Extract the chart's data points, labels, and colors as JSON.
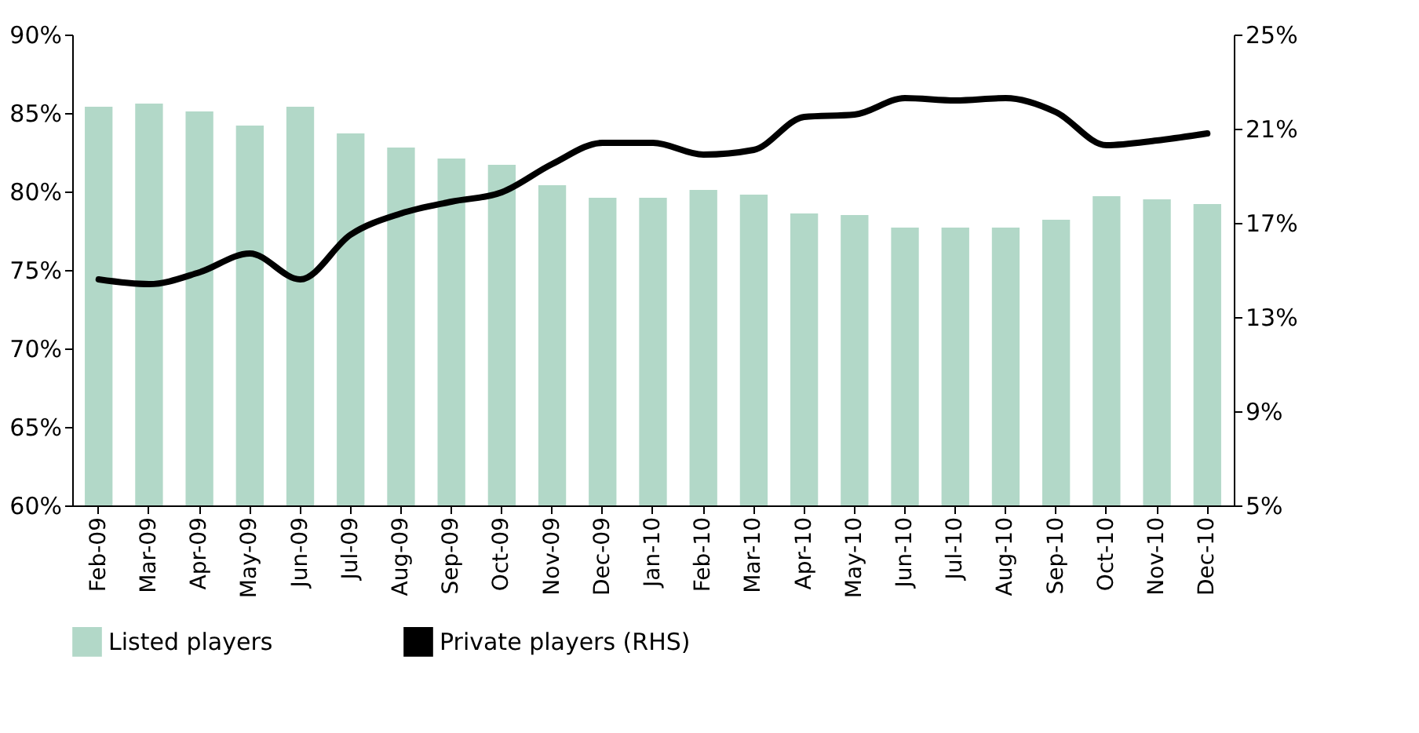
{
  "chart_data": {
    "type": "bar",
    "categories": [
      "Feb-09",
      "Mar-09",
      "Apr-09",
      "May-09",
      "Jun-09",
      "Jul-09",
      "Aug-09",
      "Sep-09",
      "Oct-09",
      "Nov-09",
      "Dec-09",
      "Jan-10",
      "Feb-10",
      "Mar-10",
      "Apr-10",
      "May-10",
      "Jun-10",
      "Jul-10",
      "Aug-10",
      "Sep-10",
      "Oct-10",
      "Nov-10",
      "Dec-10"
    ],
    "series": [
      {
        "name": "Listed players",
        "color": "#b2d8c8",
        "values": [
          85.4,
          85.6,
          85.1,
          84.2,
          85.4,
          83.7,
          82.8,
          82.1,
          81.7,
          80.4,
          79.6,
          79.6,
          80.1,
          79.8,
          78.6,
          78.5,
          77.7,
          77.7,
          77.7,
          78.2,
          79.7,
          79.5,
          79.2
        ]
      },
      {
        "name": "Private players (RHS)",
        "color": "#000000",
        "type": "line",
        "axis": "y2",
        "values": [
          14.6,
          14.4,
          14.9,
          15.7,
          14.6,
          16.5,
          17.4,
          17.9,
          18.3,
          19.5,
          20.4,
          20.4,
          19.9,
          20.1,
          21.5,
          21.6,
          22.3,
          22.2,
          22.3,
          21.7,
          20.3,
          20.5,
          20.8
        ]
      }
    ],
    "ylim": [
      60,
      90
    ],
    "yticks": [
      {
        "value": 60,
        "label": "60%"
      },
      {
        "value": 65,
        "label": "65%"
      },
      {
        "value": 70,
        "label": "70%"
      },
      {
        "value": 75,
        "label": "75%"
      },
      {
        "value": 80,
        "label": "80%"
      },
      {
        "value": 85,
        "label": "85%"
      },
      {
        "value": 90,
        "label": "90%"
      }
    ],
    "y2lim": [
      5,
      25
    ],
    "y2ticks": [
      {
        "value": 5,
        "label": "5%"
      },
      {
        "value": 9,
        "label": "9%"
      },
      {
        "value": 13,
        "label": "13%"
      },
      {
        "value": 17,
        "label": "17%"
      },
      {
        "value": 21,
        "label": "21%"
      },
      {
        "value": 25,
        "label": "25%"
      }
    ],
    "grid": false,
    "legend": "bottom",
    "line_style": "solid",
    "marker": "none"
  }
}
